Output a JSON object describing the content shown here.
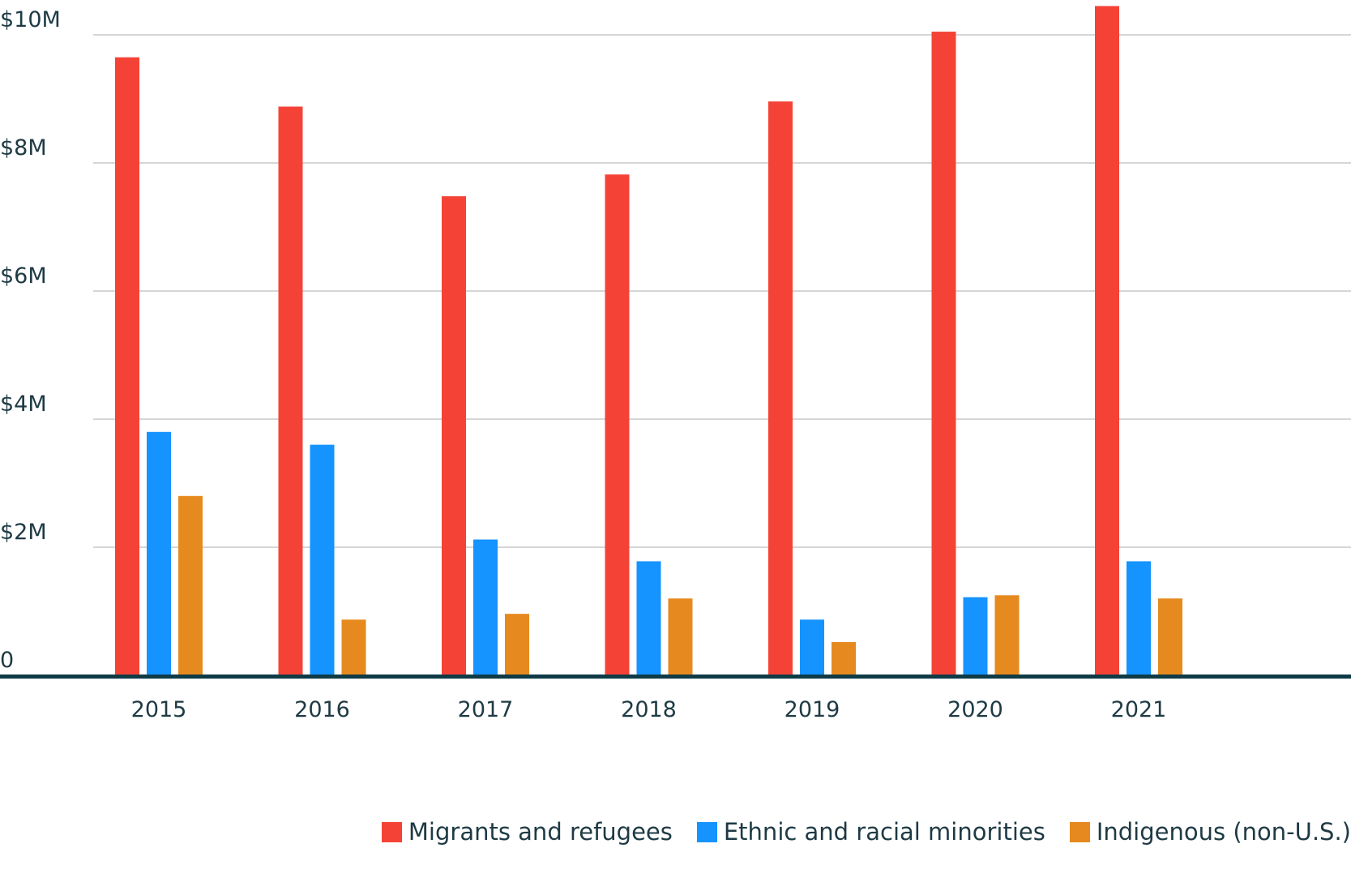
{
  "chart_data": {
    "type": "bar",
    "title": "",
    "xlabel": "",
    "ylabel": "",
    "categories": [
      "2015",
      "2016",
      "2017",
      "2018",
      "2019",
      "2020",
      "2021"
    ],
    "series": [
      {
        "name": "Migrants and refugees",
        "color": "#f44336",
        "values": [
          9.65,
          8.88,
          7.48,
          7.82,
          8.96,
          10.05,
          10.45
        ]
      },
      {
        "name": "Ethnic and racial minorities",
        "color": "#1593ff",
        "values": [
          3.8,
          3.6,
          2.12,
          1.78,
          0.87,
          1.22,
          1.78
        ]
      },
      {
        "name": "Indigenous (non-U.S.)",
        "color": "#e68a1f",
        "values": [
          2.8,
          0.87,
          0.96,
          1.2,
          0.52,
          1.25,
          1.2
        ]
      }
    ],
    "ylim": [
      0,
      10.6
    ],
    "yticks": [
      {
        "value": 0,
        "label": "0"
      },
      {
        "value": 2,
        "label": "$2M"
      },
      {
        "value": 4,
        "label": "$4M"
      },
      {
        "value": 6,
        "label": "$6M"
      },
      {
        "value": 8,
        "label": "$8M"
      },
      {
        "value": 10,
        "label": "$10M"
      }
    ],
    "grid": true,
    "legend_position": "bottom-right",
    "gridline_color": "#c8c8c8",
    "baseline_color": "#0f3b47"
  }
}
